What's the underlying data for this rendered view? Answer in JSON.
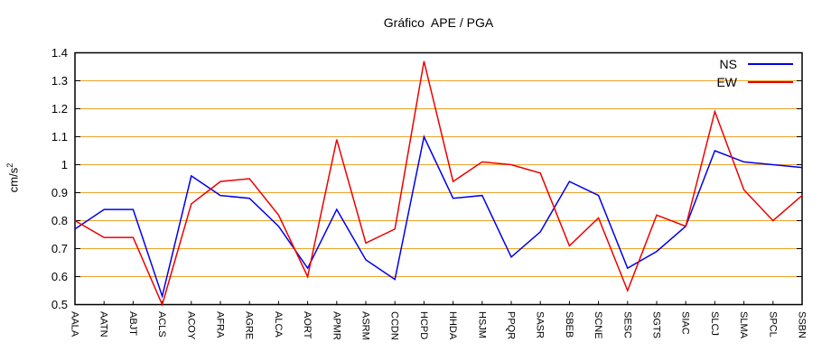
{
  "chart_data": {
    "type": "line",
    "title": "Gráfico  APE / PGA",
    "ylabel": "cm/s²",
    "ylabel_base": "cm/s",
    "ylabel_sup": "2",
    "xlabel": "",
    "ylim": [
      0.5,
      1.4
    ],
    "ytick_labels": [
      "0.5",
      "0.6",
      "0.7",
      "0.8",
      "0.9",
      "1",
      "1.1",
      "1.2",
      "1.3",
      "1.4"
    ],
    "grid": true,
    "grid_color": "#eca32b",
    "axis_color": "#000000",
    "background_color": "#ffffff",
    "legend_position": "top-right-inside",
    "categories": [
      "AALA",
      "AATN",
      "ABJT",
      "ACLS",
      "ACOY",
      "AFRA",
      "AGRE",
      "ALCA",
      "AORT",
      "APMR",
      "ASRM",
      "CCDN",
      "HCPD",
      "HHDA",
      "HSJM",
      "PPQR",
      "SASR",
      "SBEB",
      "SCNE",
      "SESC",
      "SGTS",
      "SIAC",
      "SLCJ",
      "SLMA",
      "SPCL",
      "SSBN"
    ],
    "series": [
      {
        "name": "NS",
        "color": "#0000ee",
        "values": [
          0.77,
          0.84,
          0.84,
          0.53,
          0.96,
          0.89,
          0.88,
          0.78,
          0.63,
          0.84,
          0.66,
          0.59,
          1.1,
          0.88,
          0.89,
          0.67,
          0.76,
          0.94,
          0.89,
          0.63,
          0.69,
          0.78,
          1.05,
          1.01,
          1.0,
          0.99
        ]
      },
      {
        "name": "EW",
        "color": "#ee0000",
        "values": [
          0.8,
          0.74,
          0.74,
          0.5,
          0.86,
          0.94,
          0.95,
          0.82,
          0.6,
          1.09,
          0.72,
          0.77,
          1.37,
          0.94,
          1.01,
          1.0,
          0.97,
          0.71,
          0.81,
          0.55,
          0.82,
          0.78,
          1.19,
          0.91,
          0.8,
          0.89
        ]
      }
    ]
  }
}
